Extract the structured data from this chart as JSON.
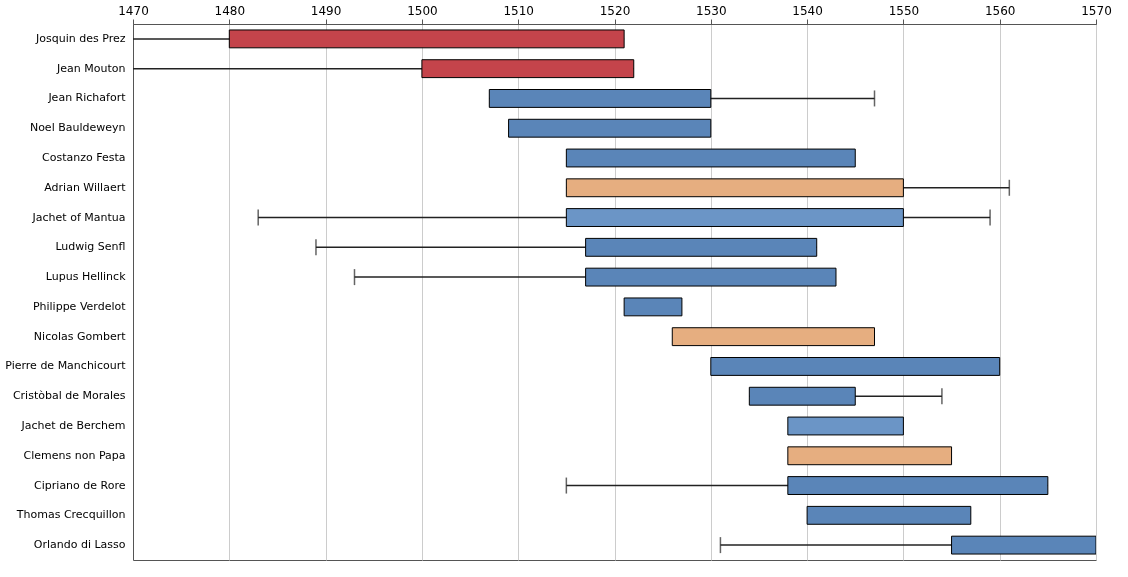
{
  "chart_data": {
    "type": "bar",
    "orientation": "horizontal",
    "categories": [
      "Josquin des Prez",
      "Jean Mouton",
      "Jean Richafort",
      "Noel Bauldeweyn",
      "Costanzo Festa",
      "Adrian Willaert",
      "Jachet of Mantua",
      "Ludwig Senfl",
      "Lupus Hellinck",
      "Philippe Verdelot",
      "Nicolas Gombert",
      "Pierre de Manchicourt",
      "Cristòbal de Morales",
      "Jachet de Berchem",
      "Clemens non Papa",
      "Cipriano de Rore",
      "Thomas Crecquillon",
      "Orlando di Lasso"
    ],
    "base": [
      1480,
      1500,
      1507,
      1509,
      1515,
      1515,
      1515,
      1517,
      1517,
      1521,
      1526,
      1530,
      1534,
      1538,
      1538,
      1538,
      1540,
      1555
    ],
    "values": [
      41,
      22,
      23,
      21,
      30,
      35,
      35,
      24,
      26,
      6,
      21,
      30,
      11,
      12,
      17,
      27,
      17,
      15
    ],
    "errors": [
      [
        1470,
        1521
      ],
      [
        1470,
        1522
      ],
      [
        1507,
        1547
      ],
      null,
      null,
      [
        1515,
        1561
      ],
      [
        1483,
        1559
      ],
      [
        1489,
        1541
      ],
      [
        1493,
        1543
      ],
      null,
      null,
      null,
      [
        1534,
        1554
      ],
      null,
      null,
      [
        1515,
        1565
      ],
      null,
      [
        1531,
        1570
      ]
    ],
    "colors": [
      "#c4444b",
      "#c4444b",
      "#5a85b8",
      "#5a85b8",
      "#5a85b8",
      "#e6ae80",
      "#6b95c6",
      "#5a85b8",
      "#5a85b8",
      "#5a85b8",
      "#e6ae80",
      "#5a85b8",
      "#5a85b8",
      "#6b95c6",
      "#e6ae80",
      "#5a85b8",
      "#5a85b8",
      "#5a85b8"
    ],
    "xlim": [
      1470,
      1570
    ],
    "xticks": [
      1470,
      1480,
      1490,
      1500,
      1510,
      1520,
      1530,
      1540,
      1550,
      1560,
      1570
    ],
    "grid": "x"
  }
}
